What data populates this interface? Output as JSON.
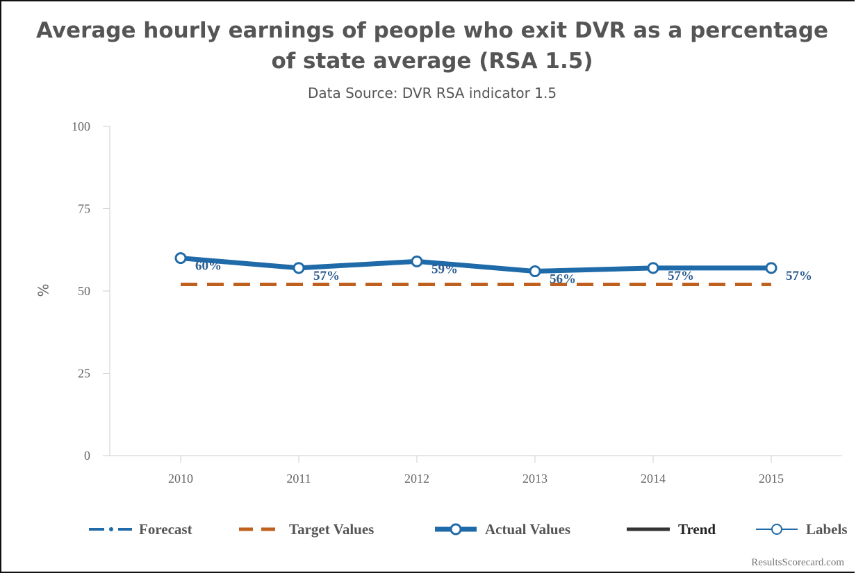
{
  "chart_data": {
    "type": "line",
    "title": "Average hourly earnings of people who exit DVR as a percentage of state average (RSA 1.5)",
    "subtitle": "Data Source: DVR RSA indicator 1.5",
    "ylabel": "%",
    "xlabel": "",
    "ylim": [
      0,
      100
    ],
    "yticks": [
      "0",
      "25",
      "50",
      "75",
      "100"
    ],
    "categories": [
      "2010",
      "2011",
      "2012",
      "2013",
      "2014",
      "2015"
    ],
    "series": [
      {
        "name": "Actual Values",
        "values": [
          60,
          57,
          59,
          56,
          57,
          57
        ],
        "labels": [
          "60%",
          "57%",
          "59%",
          "56%",
          "57%",
          "57%"
        ],
        "color": "#1f6aa8"
      },
      {
        "name": "Target Values",
        "values": [
          52,
          52,
          52,
          52,
          52,
          52
        ],
        "color": "#c0601f"
      }
    ],
    "legend": {
      "position": "bottom",
      "items": [
        {
          "label": "Forecast",
          "style": "dash-dot",
          "color": "#1f6aa8"
        },
        {
          "label": "Target Values",
          "style": "dashed",
          "color": "#c0601f"
        },
        {
          "label": "Actual Values",
          "style": "thick-marker",
          "color": "#1f6aa8"
        },
        {
          "label": "Trend",
          "style": "solid",
          "color": "#333333"
        },
        {
          "label": "Labels",
          "style": "thin-marker",
          "color": "#1f6aa8"
        }
      ]
    },
    "grid": false
  },
  "credit": "ResultsScorecard.com"
}
